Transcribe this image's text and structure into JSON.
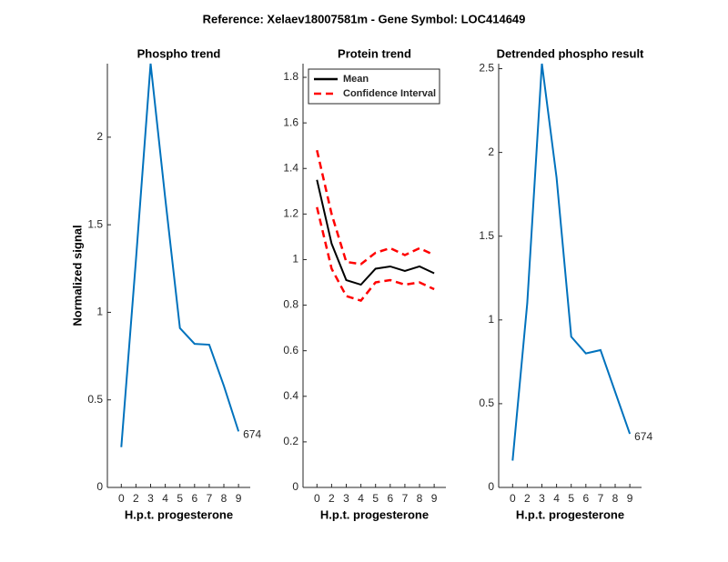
{
  "suptitle": "Reference:  Xelaev18007581m - Gene Symbol:  LOC414649",
  "chart_data": [
    {
      "type": "line",
      "title": "Phospho trend",
      "y_label": "Normalized signal",
      "x_label": "H.p.t. progesterone",
      "categories": [
        "0",
        "2",
        "3",
        "4",
        "5",
        "6",
        "7",
        "8",
        "9"
      ],
      "series": [
        {
          "color": "#0072bd",
          "values": [
            0.23,
            1.3,
            2.42,
            1.65,
            0.91,
            0.82,
            0.815,
            0.58,
            0.32
          ]
        }
      ],
      "annotation": "674",
      "ylim": [
        0,
        2.42
      ],
      "yticks": [
        0,
        0.5,
        1,
        1.5,
        2
      ]
    },
    {
      "type": "line",
      "title": "Protein trend",
      "x_label": "H.p.t. progesterone",
      "categories": [
        "0",
        "2",
        "3",
        "4",
        "5",
        "6",
        "7",
        "8",
        "9"
      ],
      "series": [
        {
          "name": "Mean",
          "color": "#000000",
          "values": [
            1.35,
            1.07,
            0.91,
            0.89,
            0.96,
            0.97,
            0.95,
            0.97,
            0.94
          ]
        },
        {
          "name": "Confidence Interval",
          "color": "#ff0000",
          "line_style": "dashed",
          "upper": [
            1.48,
            1.2,
            0.99,
            0.98,
            1.03,
            1.05,
            1.02,
            1.05,
            1.02
          ],
          "lower": [
            1.23,
            0.96,
            0.84,
            0.82,
            0.9,
            0.91,
            0.89,
            0.9,
            0.87
          ]
        }
      ],
      "legend": "upper left",
      "ylim": [
        0,
        1.86
      ],
      "yticks": [
        0,
        0.2,
        0.4,
        0.6,
        0.8,
        1,
        1.2,
        1.4,
        1.6,
        1.8
      ]
    },
    {
      "type": "line",
      "title": "Detrended phospho result",
      "x_label": "H.p.t. progesterone",
      "categories": [
        "0",
        "2",
        "3",
        "4",
        "5",
        "6",
        "7",
        "8",
        "9"
      ],
      "series": [
        {
          "color": "#0072bd",
          "values": [
            0.16,
            1.1,
            2.53,
            1.85,
            0.9,
            0.8,
            0.82,
            0.57,
            0.32
          ]
        }
      ],
      "annotation": "674",
      "ylim": [
        0,
        2.53
      ],
      "yticks": [
        0,
        0.5,
        1,
        1.5,
        2,
        2.5
      ]
    }
  ]
}
